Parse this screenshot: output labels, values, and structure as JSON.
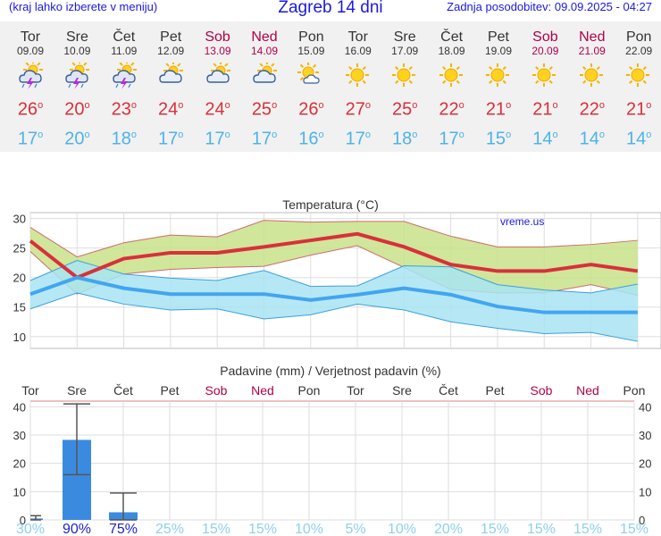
{
  "header": {
    "left": "(kraj lahko izberete v meniju)",
    "title": "Zagreb 14 dni",
    "right": "Zadnja posodobitev: 09.09.2025 - 04:27"
  },
  "days": [
    {
      "name": "Tor",
      "date": "09.09",
      "weekend": false,
      "icon": "thunderstorm-icon",
      "max": "26",
      "min": "17"
    },
    {
      "name": "Sre",
      "date": "10.09",
      "weekend": false,
      "icon": "thunderstorm-icon",
      "max": "20",
      "min": "20"
    },
    {
      "name": "Čet",
      "date": "11.09",
      "weekend": false,
      "icon": "thunderstorm-icon",
      "max": "23",
      "min": "18"
    },
    {
      "name": "Pet",
      "date": "12.09",
      "weekend": false,
      "icon": "partly-cloudy-icon",
      "max": "24",
      "min": "17"
    },
    {
      "name": "Sob",
      "date": "13.09",
      "weekend": true,
      "icon": "partly-cloudy-icon",
      "max": "24",
      "min": "17"
    },
    {
      "name": "Ned",
      "date": "14.09",
      "weekend": true,
      "icon": "partly-cloudy-icon",
      "max": "25",
      "min": "17"
    },
    {
      "name": "Pon",
      "date": "15.09",
      "weekend": false,
      "icon": "mostly-sunny-icon",
      "max": "26",
      "min": "16"
    },
    {
      "name": "Tor",
      "date": "16.09",
      "weekend": false,
      "icon": "sun-icon",
      "max": "27",
      "min": "17"
    },
    {
      "name": "Sre",
      "date": "17.09",
      "weekend": false,
      "icon": "sun-icon",
      "max": "25",
      "min": "18"
    },
    {
      "name": "Čet",
      "date": "18.09",
      "weekend": false,
      "icon": "sun-icon",
      "max": "22",
      "min": "17"
    },
    {
      "name": "Pet",
      "date": "19.09",
      "weekend": false,
      "icon": "sun-icon",
      "max": "21",
      "min": "15"
    },
    {
      "name": "Sob",
      "date": "20.09",
      "weekend": true,
      "icon": "sun-icon",
      "max": "21",
      "min": "14"
    },
    {
      "name": "Ned",
      "date": "21.09",
      "weekend": true,
      "icon": "sun-icon",
      "max": "22",
      "min": "14"
    },
    {
      "name": "Pon",
      "date": "22.09",
      "weekend": false,
      "icon": "sun-icon",
      "max": "21",
      "min": "14"
    }
  ],
  "chart_data": [
    {
      "type": "line",
      "title": "Temperatura (°C)",
      "watermark": "vreme.us",
      "ylim": [
        8,
        31
      ],
      "yticks": [
        10,
        15,
        20,
        25,
        30
      ],
      "grid": true,
      "series": [
        {
          "values": [
            26.2,
            20.0,
            23.2,
            24.2,
            24.2,
            25.2,
            26.3,
            27.4,
            25.2,
            22.2,
            21.1,
            21.1,
            22.2,
            21.1
          ],
          "color": "#d9303b"
        },
        {
          "values": [
            17.2,
            20.0,
            18.2,
            17.2,
            17.2,
            17.2,
            16.2,
            17.1,
            18.2,
            17.1,
            15.1,
            14.1,
            14.1,
            14.1
          ],
          "color": "#42a5f0"
        },
        {
          "values": [
            28.5,
            23.5,
            25.9,
            27.2,
            26.9,
            29.7,
            29.4,
            29.5,
            29.5,
            27.0,
            25.2,
            25.2,
            25.6,
            26.3
          ],
          "color": "#c8e28a"
        },
        {
          "values": [
            24.4,
            17.2,
            20.6,
            21.4,
            21.7,
            21.9,
            23.8,
            25.4,
            21.7,
            18.0,
            17.4,
            17.4,
            18.8,
            17.0
          ],
          "color": "#c8e28a"
        },
        {
          "values": [
            19.5,
            22.9,
            20.6,
            19.9,
            19.5,
            21.2,
            18.5,
            18.6,
            22.0,
            21.8,
            18.8,
            17.9,
            17.4,
            18.9
          ],
          "color": "#a8e4f2"
        },
        {
          "values": [
            14.7,
            17.4,
            15.5,
            14.5,
            14.7,
            13.0,
            13.7,
            15.5,
            14.5,
            12.5,
            11.4,
            10.5,
            10.7,
            9.2
          ],
          "color": "#a8e4f2"
        }
      ]
    },
    {
      "type": "bar",
      "title": "Padavine (mm) / Verjetnost padavin (%)",
      "categories": [
        "Tor",
        "Sre",
        "Čet",
        "Pet",
        "Sob",
        "Ned",
        "Pon",
        "Tor",
        "Sre",
        "Čet",
        "Pet",
        "Sob",
        "Ned",
        "Pon"
      ],
      "weekend": [
        false,
        false,
        false,
        false,
        true,
        true,
        false,
        false,
        false,
        false,
        false,
        true,
        true,
        false
      ],
      "values": [
        0.5,
        28.3,
        2.7,
        0,
        0,
        0,
        0,
        0,
        0,
        0,
        0,
        0,
        0,
        0
      ],
      "err_low": [
        0,
        16.0,
        0,
        0,
        0,
        0,
        0,
        0,
        0,
        0,
        0,
        0,
        0,
        0
      ],
      "err_high": [
        1.5,
        41.0,
        9.5,
        0,
        0,
        0,
        0,
        0,
        0,
        0,
        0,
        0,
        0,
        0
      ],
      "probability": [
        "30%",
        "90%",
        "75%",
        "25%",
        "15%",
        "15%",
        "10%",
        "5%",
        "10%",
        "20%",
        "15%",
        "15%",
        "15%",
        "15%"
      ],
      "ylim": [
        0,
        42
      ],
      "yticks": [
        0,
        10,
        20,
        30,
        40
      ],
      "bar_color": "#3a8be0",
      "grid": true
    }
  ]
}
